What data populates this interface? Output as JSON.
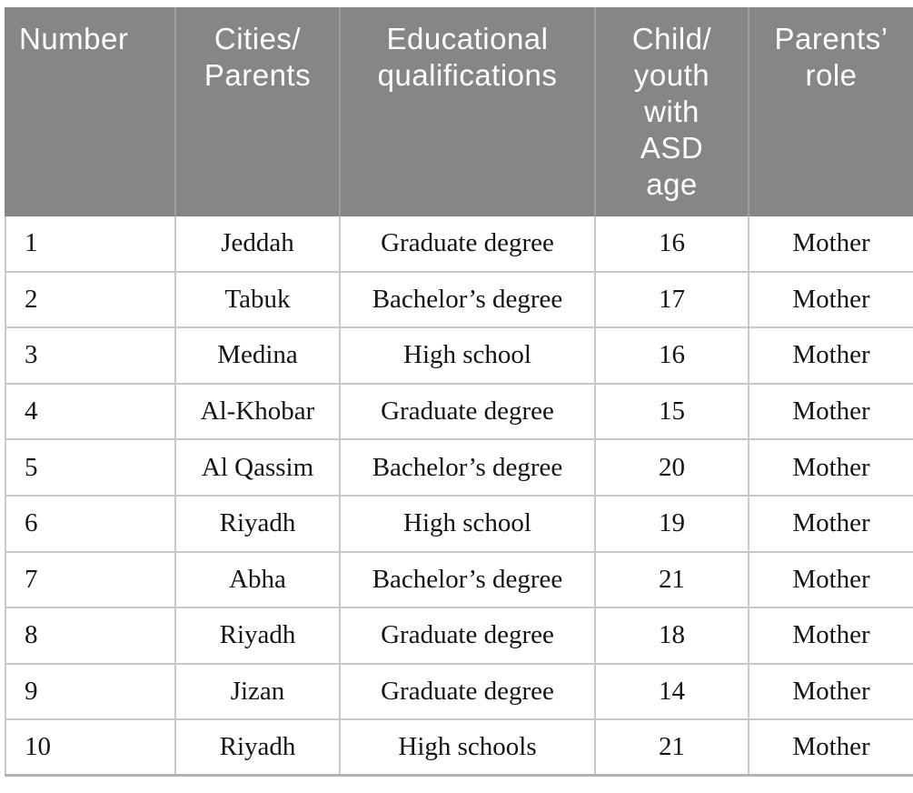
{
  "colors": {
    "header_bg": "#868686",
    "header_divider": "#9d9d9d",
    "header_text": "#ffffff",
    "body_border": "#c8c8c8",
    "table_bottom_border": "#b3b3b3",
    "body_text": "#141414"
  },
  "table": {
    "headers": [
      "Number",
      "Cities/\nParents",
      "Educational\nqualifications",
      "Child/\nyouth\nwith\nASD\nage",
      "Parents’\nrole"
    ],
    "rows": [
      [
        "1",
        "Jeddah",
        "Graduate degree",
        "16",
        "Mother"
      ],
      [
        "2",
        "Tabuk",
        "Bachelor’s degree",
        "17",
        "Mother"
      ],
      [
        "3",
        "Medina",
        "High school",
        "16",
        "Mother"
      ],
      [
        "4",
        "Al-Khobar",
        "Graduate degree",
        "15",
        "Mother"
      ],
      [
        "5",
        "Al Qassim",
        "Bachelor’s degree",
        "20",
        "Mother"
      ],
      [
        "6",
        "Riyadh",
        "High school",
        "19",
        "Mother"
      ],
      [
        "7",
        "Abha",
        "Bachelor’s degree",
        "21",
        "Mother"
      ],
      [
        "8",
        "Riyadh",
        "Graduate degree",
        "18",
        "Mother"
      ],
      [
        "9",
        "Jizan",
        "Graduate degree",
        "14",
        "Mother"
      ],
      [
        "10",
        "Riyadh",
        "High schools",
        "21",
        "Mother"
      ]
    ]
  }
}
